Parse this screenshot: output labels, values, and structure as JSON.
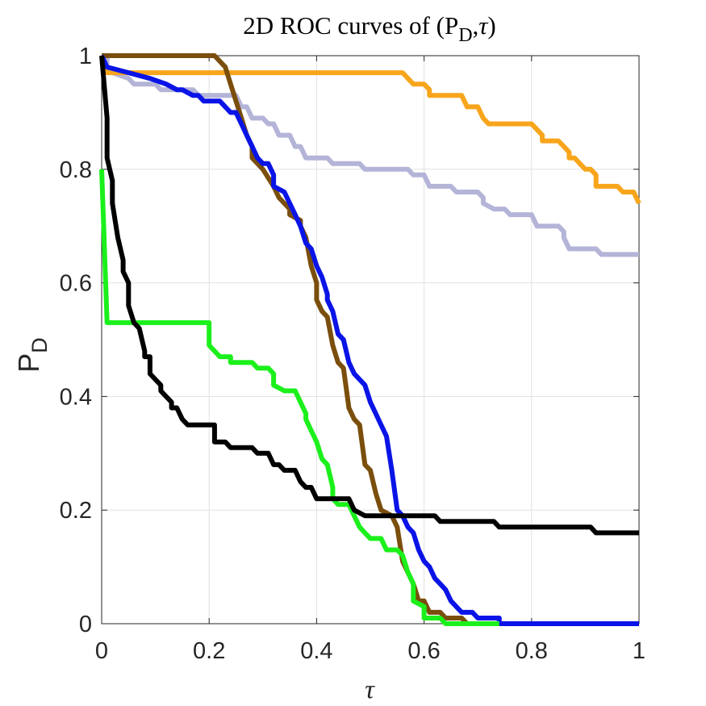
{
  "chart_data": {
    "type": "line",
    "title": {
      "prefix": "2D ROC curves of (P",
      "sub": "D",
      "comma": ",",
      "tau": "τ",
      "suffix": ")"
    },
    "xlabel": "τ",
    "ylabel": {
      "main": "P",
      "sub": "D"
    },
    "xlim": [
      0,
      1
    ],
    "ylim": [
      0,
      1
    ],
    "grid": true,
    "xticks": [
      {
        "value": 0,
        "label": "0"
      },
      {
        "value": 0.2,
        "label": "0.2"
      },
      {
        "value": 0.4,
        "label": "0.4"
      },
      {
        "value": 0.6,
        "label": "0.6"
      },
      {
        "value": 0.8,
        "label": "0.8"
      },
      {
        "value": 1,
        "label": "1"
      }
    ],
    "yticks": [
      {
        "value": 0,
        "label": "0"
      },
      {
        "value": 0.2,
        "label": "0.2"
      },
      {
        "value": 0.4,
        "label": "0.4"
      },
      {
        "value": 0.6,
        "label": "0.6"
      },
      {
        "value": 0.8,
        "label": "0.8"
      },
      {
        "value": 1,
        "label": "1"
      }
    ],
    "series": [
      {
        "name": "lavender",
        "color": "#b4b4d8",
        "points": [
          [
            0,
            1
          ],
          [
            0.01,
            1
          ],
          [
            0.01,
            0.98
          ],
          [
            0.02,
            0.97
          ],
          [
            0.05,
            0.96
          ],
          [
            0.06,
            0.95
          ],
          [
            0.1,
            0.95
          ],
          [
            0.11,
            0.94
          ],
          [
            0.17,
            0.94
          ],
          [
            0.18,
            0.93
          ],
          [
            0.25,
            0.93
          ],
          [
            0.26,
            0.91
          ],
          [
            0.27,
            0.91
          ],
          [
            0.28,
            0.89
          ],
          [
            0.3,
            0.89
          ],
          [
            0.31,
            0.88
          ],
          [
            0.32,
            0.88
          ],
          [
            0.33,
            0.86
          ],
          [
            0.35,
            0.86
          ],
          [
            0.36,
            0.84
          ],
          [
            0.37,
            0.84
          ],
          [
            0.38,
            0.82
          ],
          [
            0.42,
            0.82
          ],
          [
            0.43,
            0.81
          ],
          [
            0.48,
            0.81
          ],
          [
            0.49,
            0.8
          ],
          [
            0.57,
            0.8
          ],
          [
            0.58,
            0.79
          ],
          [
            0.6,
            0.79
          ],
          [
            0.61,
            0.77
          ],
          [
            0.65,
            0.77
          ],
          [
            0.66,
            0.76
          ],
          [
            0.7,
            0.76
          ],
          [
            0.71,
            0.75
          ],
          [
            0.71,
            0.74
          ],
          [
            0.73,
            0.73
          ],
          [
            0.75,
            0.73
          ],
          [
            0.76,
            0.72
          ],
          [
            0.8,
            0.72
          ],
          [
            0.81,
            0.7
          ],
          [
            0.85,
            0.7
          ],
          [
            0.86,
            0.69
          ],
          [
            0.86,
            0.68
          ],
          [
            0.87,
            0.66
          ],
          [
            0.92,
            0.66
          ],
          [
            0.93,
            0.65
          ],
          [
            1,
            0.65
          ]
        ]
      },
      {
        "name": "orange",
        "color": "#f8a51c",
        "points": [
          [
            0,
            0.98
          ],
          [
            0.01,
            0.97
          ],
          [
            0.56,
            0.97
          ],
          [
            0.57,
            0.96
          ],
          [
            0.58,
            0.95
          ],
          [
            0.6,
            0.95
          ],
          [
            0.61,
            0.94
          ],
          [
            0.61,
            0.93
          ],
          [
            0.67,
            0.93
          ],
          [
            0.68,
            0.91
          ],
          [
            0.7,
            0.91
          ],
          [
            0.71,
            0.89
          ],
          [
            0.72,
            0.88
          ],
          [
            0.8,
            0.88
          ],
          [
            0.81,
            0.87
          ],
          [
            0.82,
            0.86
          ],
          [
            0.82,
            0.85
          ],
          [
            0.85,
            0.85
          ],
          [
            0.86,
            0.84
          ],
          [
            0.87,
            0.83
          ],
          [
            0.87,
            0.82
          ],
          [
            0.88,
            0.82
          ],
          [
            0.89,
            0.81
          ],
          [
            0.9,
            0.8
          ],
          [
            0.91,
            0.8
          ],
          [
            0.92,
            0.79
          ],
          [
            0.92,
            0.77
          ],
          [
            0.96,
            0.77
          ],
          [
            0.97,
            0.76
          ],
          [
            0.99,
            0.76
          ],
          [
            1,
            0.74
          ]
        ]
      },
      {
        "name": "brown",
        "color": "#7a4e0c",
        "points": [
          [
            0,
            1
          ],
          [
            0.21,
            1
          ],
          [
            0.23,
            0.98
          ],
          [
            0.24,
            0.95
          ],
          [
            0.25,
            0.92
          ],
          [
            0.26,
            0.89
          ],
          [
            0.27,
            0.86
          ],
          [
            0.28,
            0.84
          ],
          [
            0.28,
            0.82
          ],
          [
            0.3,
            0.8
          ],
          [
            0.32,
            0.77
          ],
          [
            0.33,
            0.75
          ],
          [
            0.34,
            0.74
          ],
          [
            0.35,
            0.73
          ],
          [
            0.35,
            0.72
          ],
          [
            0.37,
            0.71
          ],
          [
            0.37,
            0.7
          ],
          [
            0.38,
            0.68
          ],
          [
            0.39,
            0.63
          ],
          [
            0.4,
            0.6
          ],
          [
            0.4,
            0.57
          ],
          [
            0.41,
            0.55
          ],
          [
            0.42,
            0.54
          ],
          [
            0.43,
            0.49
          ],
          [
            0.44,
            0.46
          ],
          [
            0.45,
            0.45
          ],
          [
            0.46,
            0.38
          ],
          [
            0.47,
            0.36
          ],
          [
            0.48,
            0.35
          ],
          [
            0.49,
            0.28
          ],
          [
            0.5,
            0.27
          ],
          [
            0.51,
            0.23
          ],
          [
            0.52,
            0.2
          ],
          [
            0.54,
            0.19
          ],
          [
            0.55,
            0.17
          ],
          [
            0.56,
            0.11
          ],
          [
            0.57,
            0.09
          ],
          [
            0.58,
            0.07
          ],
          [
            0.59,
            0.04
          ],
          [
            0.6,
            0.04
          ],
          [
            0.61,
            0.02
          ],
          [
            0.63,
            0.02
          ],
          [
            0.64,
            0.01
          ],
          [
            0.67,
            0.01
          ],
          [
            0.68,
            0
          ],
          [
            0.74,
            0
          ]
        ]
      },
      {
        "name": "blue",
        "color": "#0a14e6",
        "points": [
          [
            0,
            1
          ],
          [
            0.01,
            0.98
          ],
          [
            0.05,
            0.97
          ],
          [
            0.09,
            0.96
          ],
          [
            0.12,
            0.95
          ],
          [
            0.14,
            0.94
          ],
          [
            0.15,
            0.94
          ],
          [
            0.17,
            0.93
          ],
          [
            0.18,
            0.93
          ],
          [
            0.19,
            0.92
          ],
          [
            0.22,
            0.92
          ],
          [
            0.23,
            0.91
          ],
          [
            0.24,
            0.9
          ],
          [
            0.25,
            0.9
          ],
          [
            0.26,
            0.88
          ],
          [
            0.27,
            0.86
          ],
          [
            0.28,
            0.84
          ],
          [
            0.29,
            0.82
          ],
          [
            0.3,
            0.81
          ],
          [
            0.31,
            0.81
          ],
          [
            0.32,
            0.79
          ],
          [
            0.32,
            0.77
          ],
          [
            0.34,
            0.76
          ],
          [
            0.35,
            0.74
          ],
          [
            0.36,
            0.72
          ],
          [
            0.37,
            0.7
          ],
          [
            0.38,
            0.67
          ],
          [
            0.39,
            0.66
          ],
          [
            0.4,
            0.63
          ],
          [
            0.41,
            0.61
          ],
          [
            0.42,
            0.58
          ],
          [
            0.42,
            0.57
          ],
          [
            0.43,
            0.55
          ],
          [
            0.44,
            0.51
          ],
          [
            0.45,
            0.5
          ],
          [
            0.46,
            0.46
          ],
          [
            0.47,
            0.44
          ],
          [
            0.49,
            0.42
          ],
          [
            0.5,
            0.39
          ],
          [
            0.51,
            0.37
          ],
          [
            0.52,
            0.35
          ],
          [
            0.53,
            0.33
          ],
          [
            0.54,
            0.27
          ],
          [
            0.55,
            0.2
          ],
          [
            0.56,
            0.19
          ],
          [
            0.57,
            0.17
          ],
          [
            0.58,
            0.16
          ],
          [
            0.59,
            0.13
          ],
          [
            0.6,
            0.11
          ],
          [
            0.61,
            0.1
          ],
          [
            0.62,
            0.08
          ],
          [
            0.63,
            0.07
          ],
          [
            0.64,
            0.06
          ],
          [
            0.65,
            0.04
          ],
          [
            0.66,
            0.03
          ],
          [
            0.67,
            0.02
          ],
          [
            0.69,
            0.02
          ],
          [
            0.7,
            0.01
          ],
          [
            0.74,
            0.01
          ],
          [
            0.74,
            0
          ],
          [
            1,
            0
          ]
        ]
      },
      {
        "name": "green",
        "color": "#1bf01b",
        "points": [
          [
            0,
            0.8
          ],
          [
            0.01,
            0.53
          ],
          [
            0.2,
            0.53
          ],
          [
            0.2,
            0.49
          ],
          [
            0.21,
            0.48
          ],
          [
            0.22,
            0.47
          ],
          [
            0.24,
            0.47
          ],
          [
            0.24,
            0.46
          ],
          [
            0.28,
            0.46
          ],
          [
            0.29,
            0.45
          ],
          [
            0.31,
            0.45
          ],
          [
            0.32,
            0.44
          ],
          [
            0.32,
            0.42
          ],
          [
            0.34,
            0.41
          ],
          [
            0.36,
            0.41
          ],
          [
            0.37,
            0.39
          ],
          [
            0.38,
            0.37
          ],
          [
            0.38,
            0.36
          ],
          [
            0.39,
            0.34
          ],
          [
            0.4,
            0.32
          ],
          [
            0.41,
            0.29
          ],
          [
            0.42,
            0.28
          ],
          [
            0.43,
            0.24
          ],
          [
            0.43,
            0.22
          ],
          [
            0.44,
            0.21
          ],
          [
            0.46,
            0.21
          ],
          [
            0.47,
            0.19
          ],
          [
            0.48,
            0.17
          ],
          [
            0.49,
            0.16
          ],
          [
            0.5,
            0.15
          ],
          [
            0.52,
            0.15
          ],
          [
            0.53,
            0.13
          ],
          [
            0.55,
            0.13
          ],
          [
            0.56,
            0.12
          ],
          [
            0.57,
            0.09
          ],
          [
            0.58,
            0.07
          ],
          [
            0.58,
            0.04
          ],
          [
            0.6,
            0.03
          ],
          [
            0.6,
            0.01
          ],
          [
            0.63,
            0.01
          ],
          [
            0.64,
            0
          ],
          [
            0.74,
            0
          ]
        ]
      },
      {
        "name": "black",
        "color": "#000000",
        "points": [
          [
            0,
            1
          ],
          [
            0.01,
            0.89
          ],
          [
            0.01,
            0.82
          ],
          [
            0.02,
            0.78
          ],
          [
            0.02,
            0.74
          ],
          [
            0.03,
            0.68
          ],
          [
            0.04,
            0.64
          ],
          [
            0.04,
            0.62
          ],
          [
            0.05,
            0.6
          ],
          [
            0.05,
            0.56
          ],
          [
            0.06,
            0.53
          ],
          [
            0.07,
            0.52
          ],
          [
            0.08,
            0.48
          ],
          [
            0.08,
            0.47
          ],
          [
            0.09,
            0.47
          ],
          [
            0.09,
            0.44
          ],
          [
            0.1,
            0.43
          ],
          [
            0.11,
            0.42
          ],
          [
            0.11,
            0.41
          ],
          [
            0.12,
            0.4
          ],
          [
            0.13,
            0.39
          ],
          [
            0.13,
            0.38
          ],
          [
            0.14,
            0.38
          ],
          [
            0.15,
            0.36
          ],
          [
            0.16,
            0.35
          ],
          [
            0.21,
            0.35
          ],
          [
            0.21,
            0.32
          ],
          [
            0.23,
            0.32
          ],
          [
            0.24,
            0.31
          ],
          [
            0.28,
            0.31
          ],
          [
            0.29,
            0.3
          ],
          [
            0.31,
            0.3
          ],
          [
            0.32,
            0.28
          ],
          [
            0.33,
            0.28
          ],
          [
            0.34,
            0.27
          ],
          [
            0.36,
            0.27
          ],
          [
            0.37,
            0.25
          ],
          [
            0.38,
            0.24
          ],
          [
            0.39,
            0.24
          ],
          [
            0.4,
            0.22
          ],
          [
            0.46,
            0.22
          ],
          [
            0.47,
            0.2
          ],
          [
            0.49,
            0.19
          ],
          [
            0.62,
            0.19
          ],
          [
            0.63,
            0.18
          ],
          [
            0.73,
            0.18
          ],
          [
            0.74,
            0.17
          ],
          [
            0.91,
            0.17
          ],
          [
            0.92,
            0.16
          ],
          [
            1,
            0.16
          ]
        ]
      }
    ]
  }
}
